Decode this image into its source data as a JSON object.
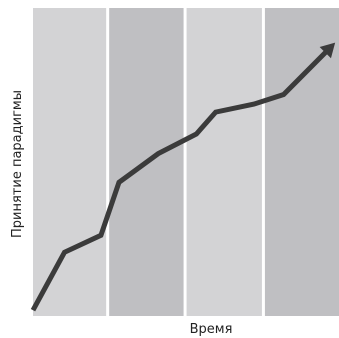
{
  "chart_data": {
    "type": "line",
    "xlabel": "Время",
    "ylabel": "Принятие парадигмы",
    "xlim": [
      0,
      100
    ],
    "ylim": [
      0,
      100
    ],
    "bands": [
      {
        "from": 0,
        "to": 24.4,
        "color": "#d3d3d5"
      },
      {
        "from": 24.4,
        "to": 49.7,
        "color": "#bfbfc2"
      },
      {
        "from": 49.7,
        "to": 75.3,
        "color": "#d3d3d5"
      },
      {
        "from": 75.3,
        "to": 100,
        "color": "#bfbfc2"
      }
    ],
    "series": [
      {
        "line_color": "#3b3b3b",
        "end_arrow": true,
        "x": [
          0,
          10.3,
          22.2,
          28.1,
          40.9,
          53.4,
          59.7,
          72.2,
          81.9,
          96.9
        ],
        "y": [
          1.9,
          20.7,
          26.2,
          43.4,
          52.7,
          59.1,
          66.2,
          68.8,
          71.9,
          86.9
        ]
      }
    ]
  }
}
